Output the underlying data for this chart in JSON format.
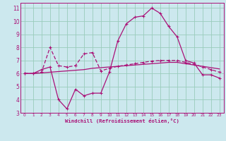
{
  "bg_color": "#cce8ee",
  "line_color": "#aa1177",
  "grid_color": "#99ccbb",
  "xlabel": "Windchill (Refroidissement éolien,°C)",
  "xlim": [
    -0.5,
    23.5
  ],
  "ylim": [
    3,
    11.4
  ],
  "xticks": [
    0,
    1,
    2,
    3,
    4,
    5,
    6,
    7,
    8,
    9,
    10,
    11,
    12,
    13,
    14,
    15,
    16,
    17,
    18,
    19,
    20,
    21,
    22,
    23
  ],
  "yticks": [
    3,
    4,
    5,
    6,
    7,
    8,
    9,
    10,
    11
  ],
  "series1_x": [
    0,
    1,
    2,
    3,
    4,
    5,
    6,
    7,
    8,
    9,
    10,
    11,
    12,
    13,
    14,
    15,
    16,
    17,
    18,
    19,
    20,
    21,
    22,
    23
  ],
  "series1_y": [
    6.0,
    6.0,
    6.3,
    6.5,
    4.0,
    3.3,
    4.8,
    4.3,
    4.5,
    4.5,
    6.1,
    8.5,
    9.8,
    10.3,
    10.4,
    11.0,
    10.6,
    9.6,
    8.8,
    7.0,
    6.8,
    5.9,
    5.9,
    5.65
  ],
  "series2_x": [
    0,
    1,
    2,
    3,
    4,
    5,
    6,
    7,
    8,
    9,
    10,
    11,
    12,
    13,
    14,
    15,
    16,
    17,
    18,
    19,
    20,
    21,
    22,
    23
  ],
  "series2_y": [
    6.0,
    6.0,
    6.1,
    8.0,
    6.6,
    6.5,
    6.6,
    7.5,
    7.6,
    6.2,
    6.4,
    6.55,
    6.65,
    6.75,
    6.85,
    6.95,
    7.0,
    7.0,
    7.0,
    6.85,
    6.7,
    6.5,
    6.3,
    6.1
  ],
  "series3_x": [
    0,
    1,
    2,
    3,
    4,
    5,
    6,
    7,
    8,
    9,
    10,
    11,
    12,
    13,
    14,
    15,
    16,
    17,
    18,
    19,
    20,
    21,
    22,
    23
  ],
  "series3_y": [
    6.0,
    6.0,
    6.05,
    6.1,
    6.15,
    6.2,
    6.25,
    6.3,
    6.4,
    6.45,
    6.5,
    6.55,
    6.6,
    6.65,
    6.7,
    6.75,
    6.8,
    6.85,
    6.85,
    6.75,
    6.65,
    6.55,
    6.45,
    6.35
  ],
  "xlabel_fontsize": 5.2,
  "tick_fontsize_x": 4.2,
  "tick_fontsize_y": 5.5
}
